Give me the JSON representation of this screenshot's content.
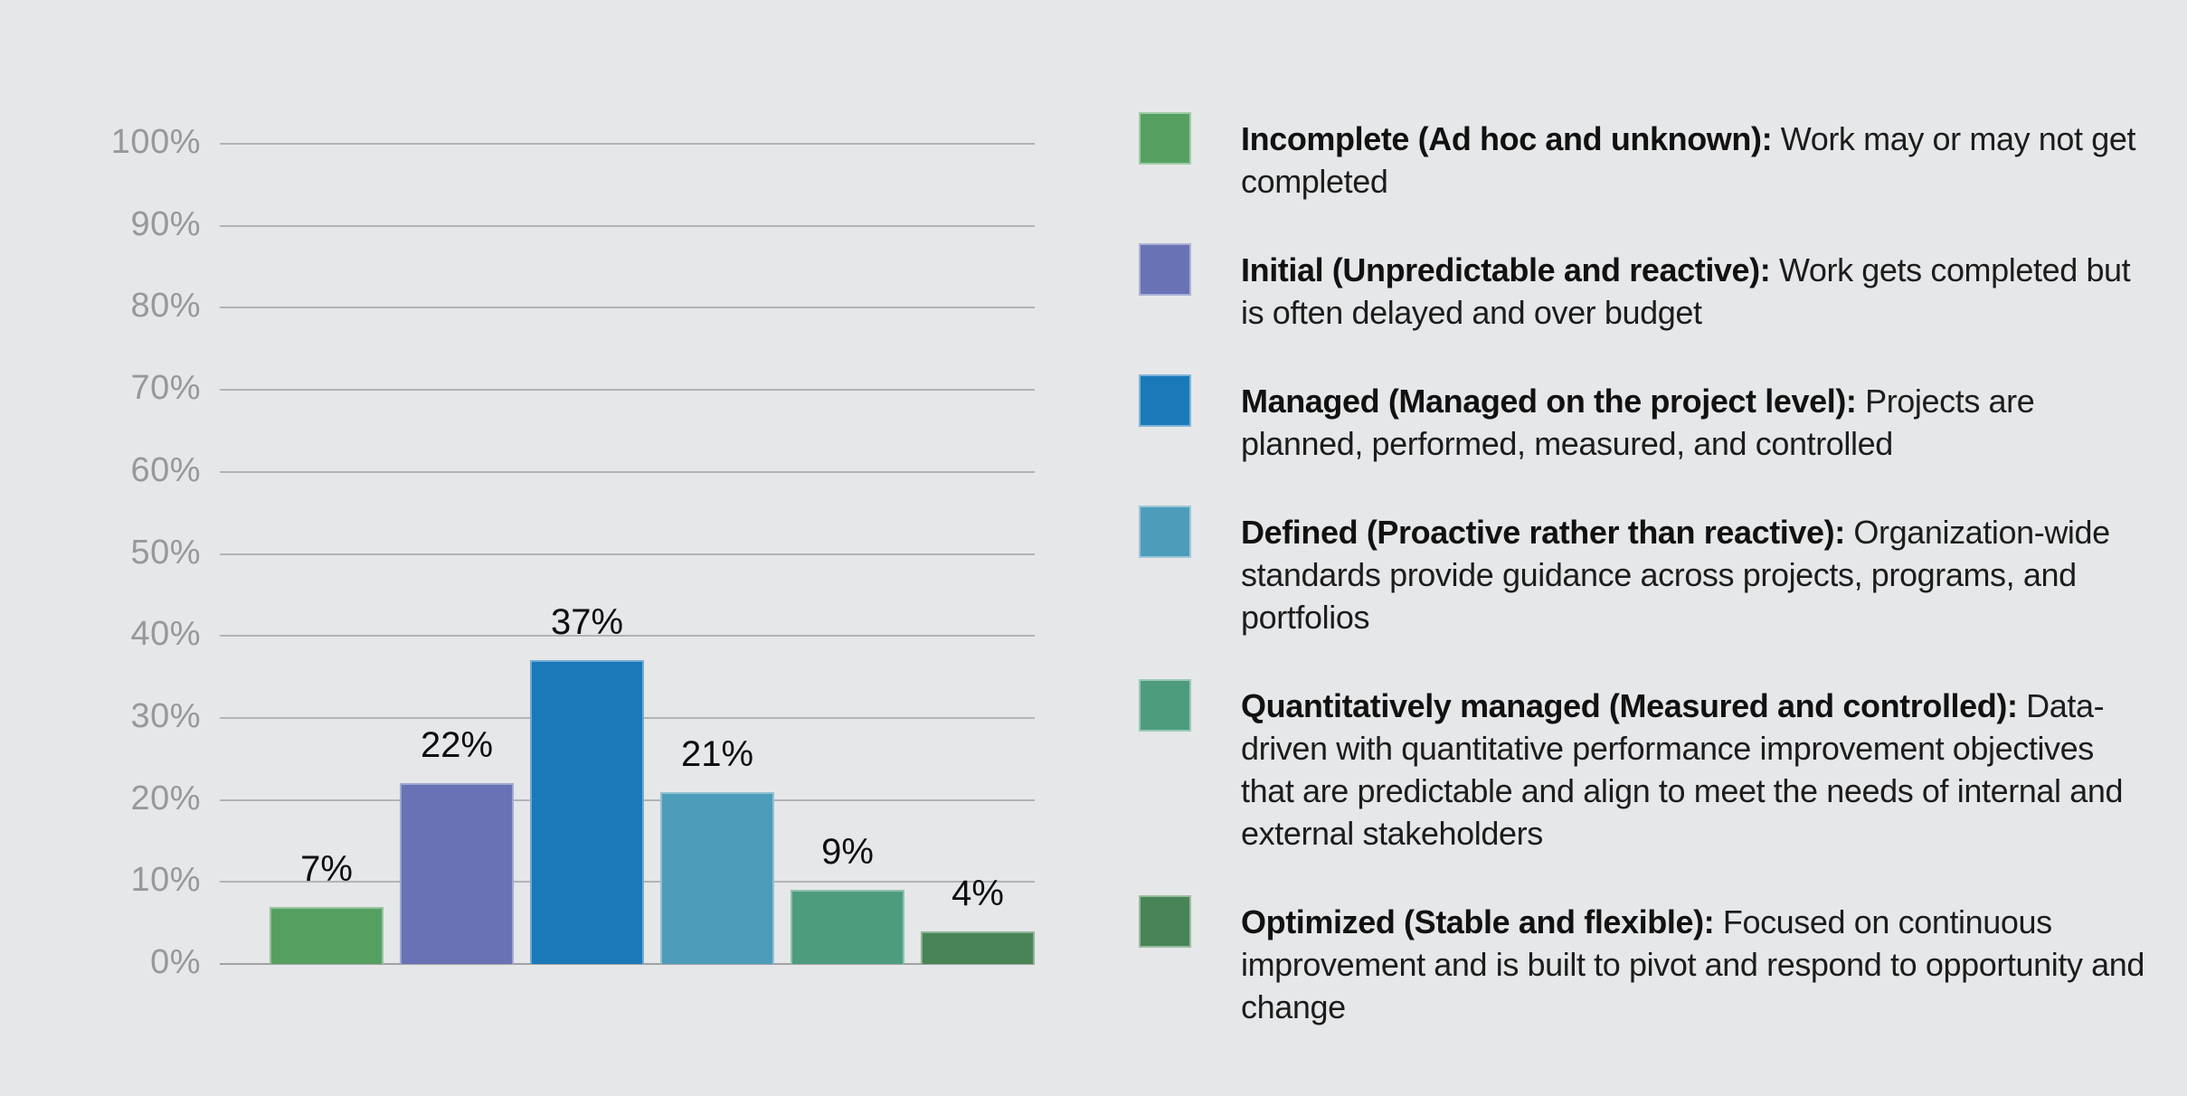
{
  "colors": {
    "background": "#e6e7e9",
    "gridline": "#b2b3b5",
    "axis_tick_text": "#96989a",
    "value_label_text": "#0e0e0f",
    "legend_text": "#1c1c1c"
  },
  "chart_data": {
    "type": "bar",
    "title": "",
    "xlabel": "",
    "ylabel": "",
    "categories": [
      "Incomplete",
      "Initial",
      "Managed",
      "Defined",
      "Quantitatively managed",
      "Optimized"
    ],
    "values": [
      7,
      22,
      37,
      21,
      9,
      4
    ],
    "value_labels": [
      "7%",
      "22%",
      "37%",
      "21%",
      "9%",
      "4%"
    ],
    "bar_colors": [
      "#55a061",
      "#6872b5",
      "#1a79b8",
      "#4d9cba",
      "#4d9c7d",
      "#488455"
    ],
    "ylim": [
      0,
      100
    ],
    "yticks": [
      "0%",
      "10%",
      "20%",
      "30%",
      "40%",
      "50%",
      "60%",
      "70%",
      "80%",
      "90%",
      "100%"
    ],
    "grid": true,
    "legend_position": "right"
  },
  "legend": {
    "items": [
      {
        "color": "#55a061",
        "title": "Incomplete (Ad hoc and unknown):",
        "description": "Work may or may not get completed"
      },
      {
        "color": "#6872b5",
        "title": "Initial (Unpredictable and reactive):",
        "description": "Work gets completed but is often delayed and over budget"
      },
      {
        "color": "#1a79b8",
        "title": "Managed (Managed on the project level):",
        "description": "Projects are planned, performed, measured, and controlled"
      },
      {
        "color": "#4d9cba",
        "title": "Defined (Proactive rather than reactive):",
        "description": "Organization-wide standards provide guidance across projects, programs, and portfolios"
      },
      {
        "color": "#4d9c7d",
        "title": "Quantitatively managed (Measured and controlled):",
        "description": "Data-driven with quantitative performance improvement objectives that are predictable and align to meet the needs of internal and external stakeholders"
      },
      {
        "color": "#488455",
        "title": "Optimized (Stable and flexible):",
        "description": "Focused on continuous improvement and is built to pivot and respond to opportunity and change"
      }
    ]
  }
}
